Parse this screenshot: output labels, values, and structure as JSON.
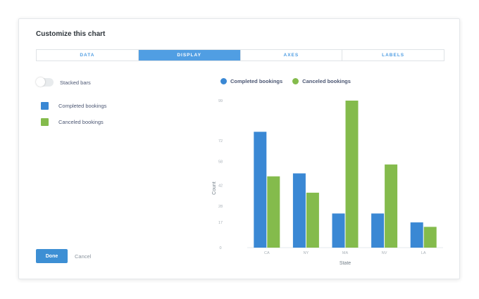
{
  "modal": {
    "title": "Customize this chart"
  },
  "tabs": [
    {
      "label": "DATA",
      "active": false
    },
    {
      "label": "DISPLAY",
      "active": true
    },
    {
      "label": "AXES",
      "active": false
    },
    {
      "label": "LABELS",
      "active": false
    }
  ],
  "display": {
    "stacked_label": "Stacked bars",
    "stacked_on": false,
    "series": [
      {
        "label": "Completed bookings",
        "color": "#3a88d4"
      },
      {
        "label": "Canceled bookings",
        "color": "#84bb4c"
      }
    ]
  },
  "footer": {
    "done_label": "Done",
    "cancel_label": "Cancel"
  },
  "chart_data": {
    "type": "bar",
    "categories": [
      "CA",
      "NY",
      "MA",
      "NV",
      "LA"
    ],
    "series": [
      {
        "name": "Completed bookings",
        "color": "#3a88d4",
        "values": [
          78,
          50,
          23,
          23,
          17
        ]
      },
      {
        "name": "Canceled bookings",
        "color": "#84bb4c",
        "values": [
          48,
          37,
          99,
          56,
          14
        ]
      }
    ],
    "xlabel": "State",
    "ylabel": "Count",
    "yticks": [
      0,
      17,
      28,
      42,
      58,
      72,
      99
    ],
    "ylim": [
      0,
      99
    ],
    "legend": "top"
  }
}
